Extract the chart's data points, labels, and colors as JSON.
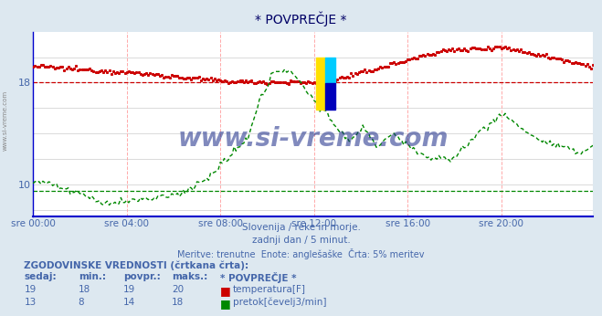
{
  "title": "* POVPREČJE *",
  "bg_color": "#dde8f0",
  "plot_bg_color": "#ffffff",
  "x_label_color": "#4466aa",
  "grid_color_v": "#ffaaaa",
  "grid_color_h": "#cccccc",
  "axis_color": "#0000cc",
  "temp_color": "#cc0000",
  "flow_color": "#008800",
  "temp_avg_line": 18.0,
  "flow_avg_line": 9.5,
  "ylim_min": 7.5,
  "ylim_max": 22.0,
  "yticks": [
    10,
    18
  ],
  "n_points": 288,
  "subtitle1": "Slovenija / reke in morje.",
  "subtitle2": "zadnji dan / 5 minut.",
  "subtitle3": "Meritve: trenutne  Enote: anglešaške  Črta: 5% meritev",
  "watermark": "www.si-vreme.com",
  "watermark_color": "#1a2a88",
  "legend_title": "ZGODOVINSKE VREDNOSTI (črtkana črta):",
  "legend_headers": [
    "sedaj:",
    "min.:",
    "povpr.:",
    "maks.:",
    "* POVPREČJE *"
  ],
  "legend_row1": [
    "19",
    "18",
    "19",
    "20",
    "temperatura[F]"
  ],
  "legend_row2": [
    "13",
    "8",
    "14",
    "18",
    "pretok[čevelj3/min]"
  ],
  "x_tick_labels": [
    "sre 00:00",
    "sre 04:00",
    "sre 08:00",
    "sre 12:00",
    "sre 16:00",
    "sre 20:00"
  ],
  "x_tick_positions": [
    0,
    48,
    96,
    144,
    192,
    240
  ],
  "side_label": "www.si-vreme.com"
}
